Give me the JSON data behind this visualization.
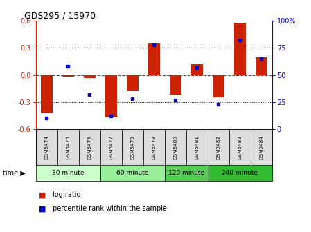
{
  "title": "GDS295 / 15970",
  "samples": [
    "GSM5474",
    "GSM5475",
    "GSM5476",
    "GSM5477",
    "GSM5478",
    "GSM5479",
    "GSM5480",
    "GSM5481",
    "GSM5482",
    "GSM5483",
    "GSM5484"
  ],
  "log_ratio": [
    -0.42,
    -0.02,
    -0.03,
    -0.47,
    -0.18,
    0.35,
    -0.22,
    0.12,
    -0.25,
    0.58,
    0.2
  ],
  "percentile": [
    10,
    58,
    32,
    12,
    28,
    78,
    27,
    57,
    23,
    82,
    65
  ],
  "time_groups": [
    {
      "label": "30 minute",
      "start": 0,
      "end": 3,
      "color": "#ccffcc"
    },
    {
      "label": "60 minute",
      "start": 3,
      "end": 6,
      "color": "#99ee99"
    },
    {
      "label": "120 minute",
      "start": 6,
      "end": 8,
      "color": "#55cc55"
    },
    {
      "label": "240 minute",
      "start": 8,
      "end": 11,
      "color": "#33bb33"
    }
  ],
  "ylim": [
    -0.6,
    0.6
  ],
  "yticks_left": [
    -0.6,
    -0.3,
    0.0,
    0.3,
    0.6
  ],
  "yticks_right": [
    0,
    25,
    50,
    75,
    100
  ],
  "bar_color": "#cc2200",
  "dot_color": "#0000cc",
  "zero_line_color": "#cc2200",
  "grid_color": "#000000",
  "bg_color": "#ffffff",
  "tick_bg": "#dddddd",
  "bar_width": 0.55
}
